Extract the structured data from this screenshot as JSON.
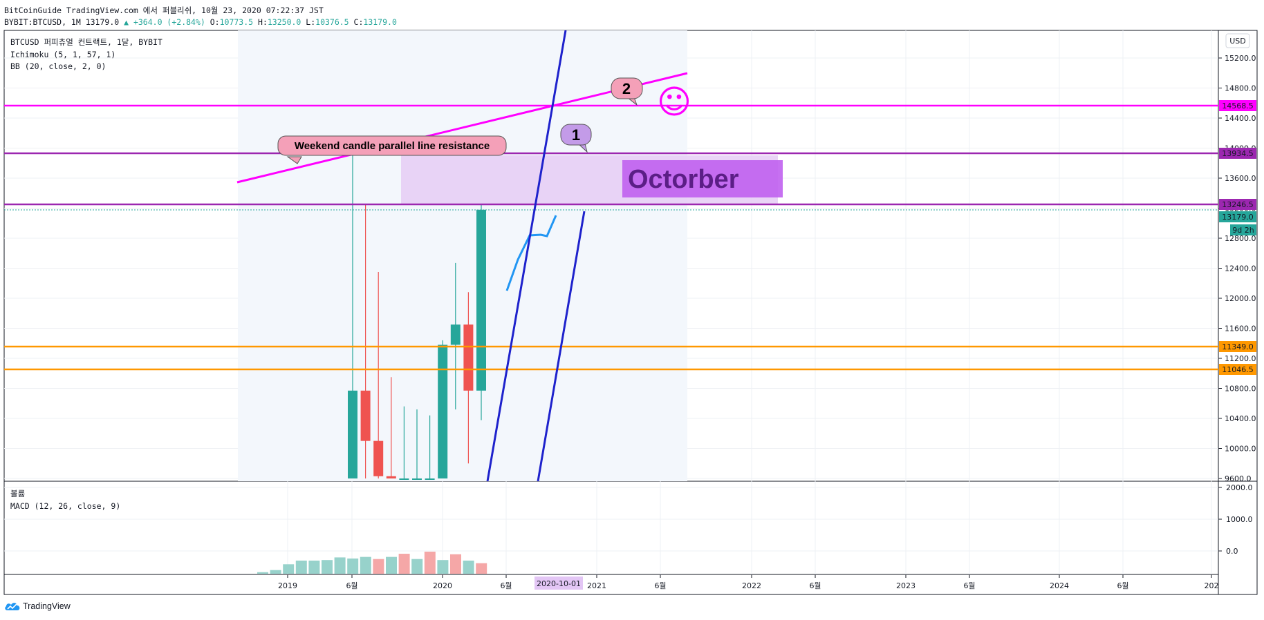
{
  "header": {
    "line1": "BitCoinGuide TradingView.com 에서 퍼블리쉬, 10월 23, 2020 07:22:37 JST",
    "symbol": "BYBIT:BTCUSD, 1M 13179.0",
    "change": "▲ +364.0 (+2.84%)",
    "o_label": "O:",
    "o": "10773.5",
    "h_label": "H:",
    "h": "13250.0",
    "l_label": "L:",
    "l": "10376.5",
    "c_label": "C:",
    "c": "13179.0"
  },
  "legend": {
    "main": "BTCUSD 퍼피츄얼 컨트랙트, 1달, BYBIT",
    "ind1": "Ichimoku (5, 1, 57, 1)",
    "ind2": "BB (20, close, 2, 0)",
    "vol": "볼륨",
    "macd": "MACD (12, 26, close, 9)"
  },
  "currency": "USD",
  "footer": {
    "brand": "TradingView"
  },
  "colors": {
    "bull": "#26a69a",
    "bear": "#ef5350",
    "magenta": "#ff00ff",
    "purple": "#9c27b0",
    "orange": "#ff9800",
    "blue": "#1e22cc",
    "cyan": "#2196f3"
  },
  "chart_data": {
    "type": "candlestick",
    "title": "BTCUSD 퍼피츄얼 컨트랙트, 1달, BYBIT",
    "interval": "1M",
    "y_ticks": [
      "15200.0",
      "14800.0",
      "14400.0",
      "14000.0",
      "13600.0",
      "13200.0",
      "12800.0",
      "12400.0",
      "12000.0",
      "11600.0",
      "11200.0",
      "10800.0",
      "10400.0",
      "10000.0",
      "9600.0"
    ],
    "ylim": [
      9600,
      15200
    ],
    "x_ticks": [
      "2019",
      "6월",
      "2020",
      "6월",
      "2021",
      "6월",
      "2022",
      "6월",
      "2023",
      "6월",
      "2024",
      "6월",
      "202"
    ],
    "x_cursor": "2020-10-01",
    "candles": [
      {
        "o": 9600,
        "h": 13930,
        "l": 9600,
        "c": 10770
      },
      {
        "o": 10770,
        "h": 13250,
        "l": 9600,
        "c": 10100
      },
      {
        "o": 10100,
        "h": 12350,
        "l": 9600,
        "c": 9630
      },
      {
        "o": 9630,
        "h": 10950,
        "l": 9600,
        "c": 9600
      },
      {
        "o": 9600,
        "h": 10560,
        "l": 9600,
        "c": 9600
      },
      {
        "o": 9600,
        "h": 10520,
        "l": 9600,
        "c": 9600
      },
      {
        "o": 9600,
        "h": 10440,
        "l": 9600,
        "c": 9600
      },
      {
        "o": 9600,
        "h": 11440,
        "l": 9600,
        "c": 11380
      },
      {
        "o": 11380,
        "h": 12470,
        "l": 10520,
        "c": 11650
      },
      {
        "o": 11650,
        "h": 12080,
        "l": 9800,
        "c": 10770
      },
      {
        "o": 10770,
        "h": 13250,
        "l": 10376.5,
        "c": 13179
      }
    ],
    "levels": [
      {
        "price": "14568.5",
        "color": "#ff00ff"
      },
      {
        "price": "13934.5",
        "color": "#9c27b0"
      },
      {
        "price": "13246.5",
        "color": "#9c27b0"
      },
      {
        "price": "13179.0",
        "color": "#26a69a"
      },
      {
        "price": "11349.0",
        "color": "#ff9800"
      },
      {
        "price": "11046.5",
        "color": "#ff9800"
      }
    ],
    "countdown": "9d 2h",
    "annotations": {
      "weekend": "Weekend candle parallel line resistance",
      "one": "1",
      "two": "2",
      "october": "Octorber",
      "smiley": "☺"
    },
    "macd_ticks": [
      "2000.0",
      "1000.0",
      "0.0"
    ],
    "volume": [
      0.15,
      0.35,
      0.9,
      1.25,
      1.25,
      1.3,
      1.55,
      1.45,
      1.6,
      1.4,
      1.6,
      1.9,
      1.4,
      2.1,
      1.3,
      1.85,
      1.25,
      1.0
    ]
  }
}
